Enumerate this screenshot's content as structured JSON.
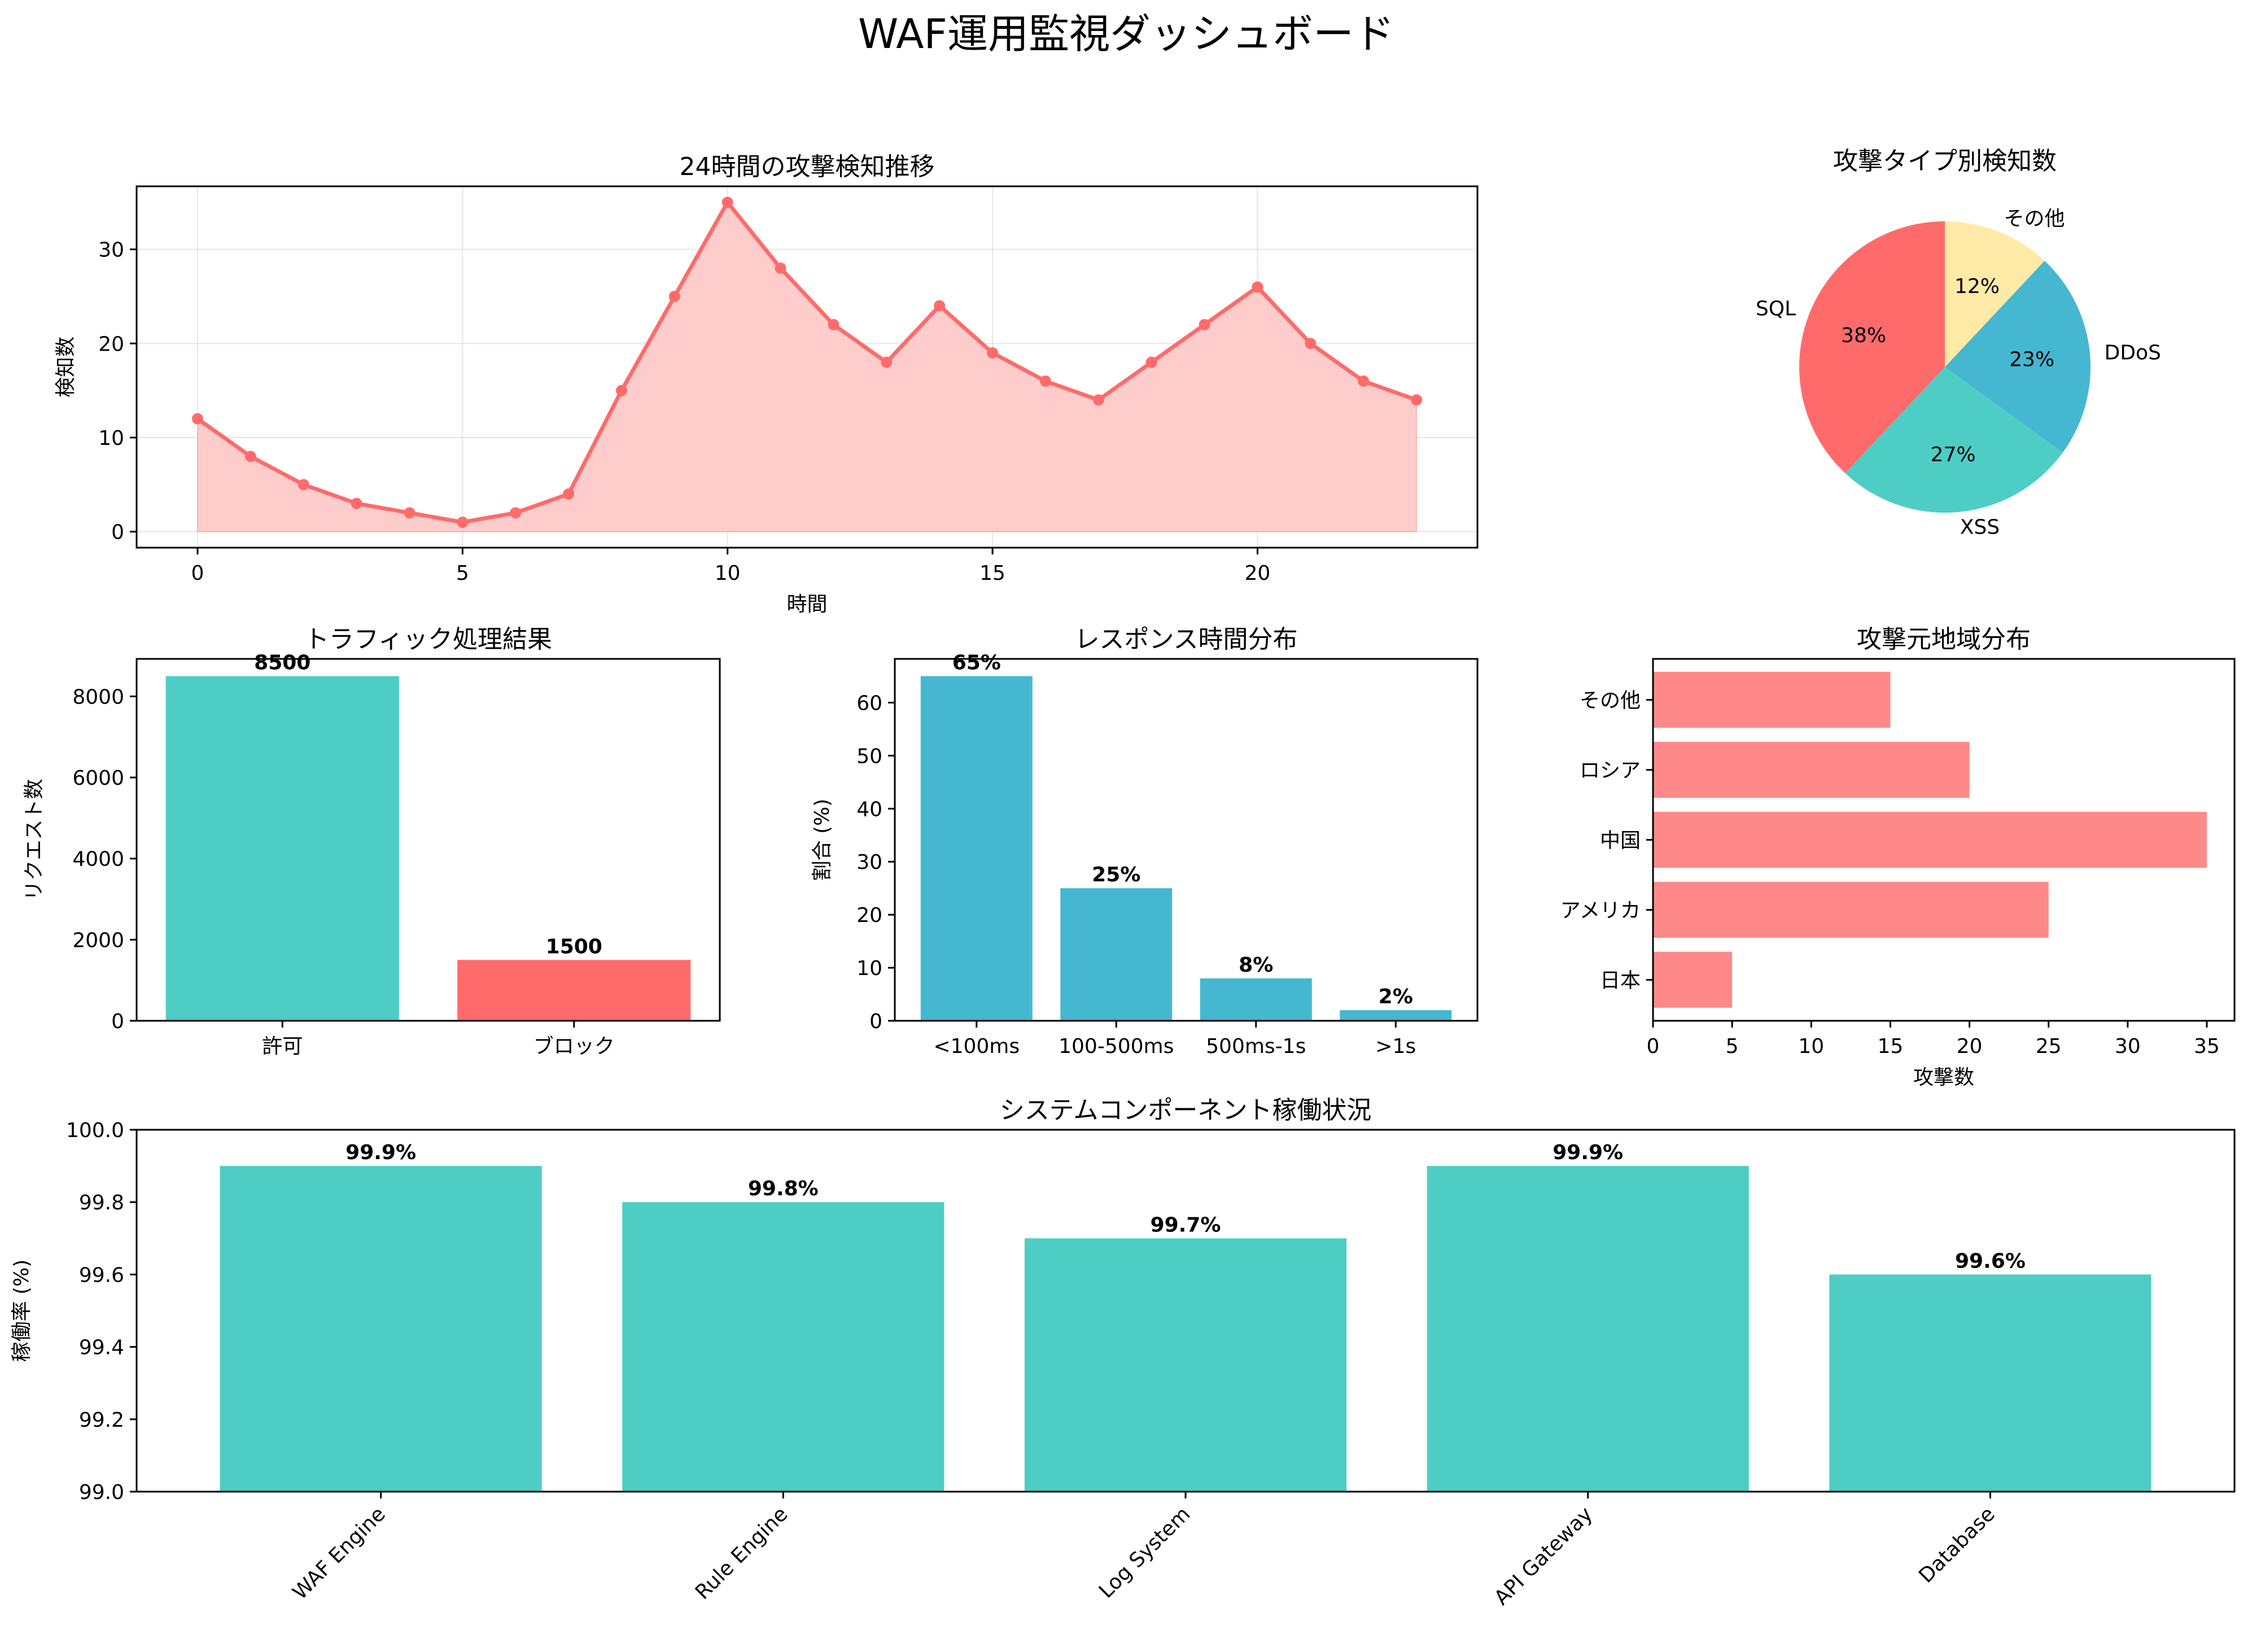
{
  "dashboard": {
    "title": "WAF運用監視ダッシュボード"
  },
  "chart_data": [
    {
      "id": "trend",
      "type": "line",
      "title": "24時間の攻撃検知推移",
      "xlabel": "時間",
      "ylabel": "検知数",
      "x": [
        0,
        1,
        2,
        3,
        4,
        5,
        6,
        7,
        8,
        9,
        10,
        11,
        12,
        13,
        14,
        15,
        16,
        17,
        18,
        19,
        20,
        21,
        22,
        23
      ],
      "values": [
        12,
        8,
        5,
        3,
        2,
        1,
        2,
        4,
        15,
        25,
        35,
        28,
        22,
        18,
        24,
        19,
        16,
        14,
        18,
        22,
        26,
        20,
        16,
        14
      ],
      "xlim": [
        -1.15,
        24.15
      ],
      "ylim": [
        -1.7,
        36.7
      ],
      "xticks": [
        0,
        5,
        10,
        15,
        20
      ],
      "yticks": [
        0,
        10,
        20,
        30
      ],
      "grid": true,
      "fill": true,
      "color": "#FF6B6B",
      "fill_color": "#FFCCCC"
    },
    {
      "id": "pie",
      "type": "pie",
      "title": "攻撃タイプ別検知数",
      "labels": [
        "SQL",
        "XSS",
        "DDoS",
        "その他"
      ],
      "values": [
        38,
        27,
        23,
        12
      ],
      "pct_labels": [
        "38%",
        "27%",
        "23%",
        "12%"
      ],
      "colors": [
        "#FF6B6B",
        "#4ECDC4",
        "#45B7D1",
        "#FFEAA7"
      ],
      "start_angle": 90
    },
    {
      "id": "traffic",
      "type": "bar",
      "title": "トラフィック処理結果",
      "ylabel": "リクエスト数",
      "categories": [
        "許可",
        "ブロック"
      ],
      "values": [
        8500,
        1500
      ],
      "value_labels": [
        "8500",
        "1500"
      ],
      "colors": [
        "#4ECDC4",
        "#FF6B6B"
      ],
      "ylim": [
        0,
        8925
      ],
      "yticks": [
        0,
        2000,
        4000,
        6000,
        8000
      ]
    },
    {
      "id": "response",
      "type": "bar",
      "title": "レスポンス時間分布",
      "ylabel": "割合 (%)",
      "categories": [
        "<100ms",
        "100-500ms",
        "500ms-1s",
        ">1s"
      ],
      "values": [
        65,
        25,
        8,
        2
      ],
      "value_labels": [
        "65%",
        "25%",
        "8%",
        "2%"
      ],
      "colors": [
        "#45B7D1"
      ],
      "ylim": [
        0,
        68.25
      ],
      "yticks": [
        0,
        10,
        20,
        30,
        40,
        50,
        60
      ]
    },
    {
      "id": "region",
      "type": "bar",
      "orientation": "horizontal",
      "title": "攻撃元地域分布",
      "xlabel": "攻撃数",
      "categories": [
        "日本",
        "アメリカ",
        "中国",
        "ロシア",
        "その他"
      ],
      "values": [
        5,
        25,
        35,
        20,
        15
      ],
      "colors": [
        "#FF6B6B"
      ],
      "xlim": [
        0,
        36.75
      ],
      "xticks": [
        0,
        5,
        10,
        15,
        20,
        25,
        30,
        35
      ]
    },
    {
      "id": "uptime",
      "type": "bar",
      "title": "システムコンポーネント稼働状況",
      "ylabel": "稼働率 (%)",
      "categories": [
        "WAF Engine",
        "Rule Engine",
        "Log System",
        "API Gateway",
        "Database"
      ],
      "values": [
        99.9,
        99.8,
        99.7,
        99.9,
        99.6
      ],
      "value_labels": [
        "99.9%",
        "99.8%",
        "99.7%",
        "99.9%",
        "99.6%"
      ],
      "colors": [
        "#4ECDC4"
      ],
      "ylim": [
        99.0,
        100.0
      ],
      "yticks": [
        "99.0",
        "99.2",
        "99.4",
        "99.6",
        "99.8",
        "100.0"
      ]
    }
  ]
}
